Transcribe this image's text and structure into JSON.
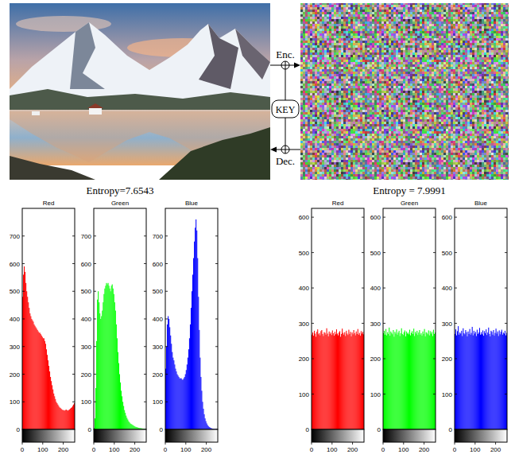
{
  "diagram": {
    "encrypt_label": "Enc.",
    "decrypt_label": "Dec.",
    "key_label": "KEY",
    "plain_entropy": "Entropy=7.6543",
    "cipher_entropy": "Entropy = 7.9991"
  },
  "chart_data": [
    {
      "type": "histogram",
      "title": "Red",
      "color": "#ff0000",
      "bins": [
        0,
        4,
        8,
        12,
        16,
        20,
        24,
        28,
        32,
        36,
        40,
        44,
        48,
        52,
        56,
        60,
        64,
        68,
        72,
        76,
        80,
        84,
        88,
        92,
        96,
        100,
        104,
        108,
        112,
        116,
        120,
        124,
        128,
        132,
        136,
        140,
        144,
        148,
        152,
        156,
        160,
        164,
        168,
        172,
        176,
        180,
        184,
        188,
        192,
        196,
        200,
        204,
        208,
        212,
        216,
        220,
        224,
        228,
        232,
        236,
        240,
        244,
        248,
        252,
        256
      ],
      "values": [
        480,
        560,
        590,
        570,
        530,
        500,
        480,
        460,
        440,
        420,
        410,
        400,
        395,
        390,
        380,
        375,
        370,
        365,
        360,
        355,
        350,
        350,
        345,
        340,
        335,
        330,
        330,
        320,
        310,
        290,
        270,
        250,
        230,
        210,
        190,
        175,
        160,
        145,
        130,
        120,
        110,
        100,
        95,
        90,
        85,
        80,
        78,
        75,
        72,
        70,
        70,
        68,
        70,
        72,
        70,
        68,
        70,
        72,
        75,
        78,
        80,
        85,
        90,
        95
      ],
      "xlim": [
        0,
        256
      ],
      "xticks": [
        0,
        100,
        200
      ],
      "ylim": [
        0,
        800
      ],
      "yticks": [
        0,
        100,
        200,
        300,
        400,
        500,
        600,
        700
      ]
    },
    {
      "type": "histogram",
      "title": "Green",
      "color": "#00ff00",
      "bins": [
        0,
        4,
        8,
        12,
        16,
        20,
        24,
        28,
        32,
        36,
        40,
        44,
        48,
        52,
        56,
        60,
        64,
        68,
        72,
        76,
        80,
        84,
        88,
        92,
        96,
        100,
        104,
        108,
        112,
        116,
        120,
        124,
        128,
        132,
        136,
        140,
        144,
        148,
        152,
        156,
        160,
        164,
        168,
        172,
        176,
        180,
        184,
        188,
        192,
        196,
        200,
        204,
        208,
        212,
        216,
        220,
        224,
        228,
        232,
        236,
        240,
        244,
        248,
        252,
        256
      ],
      "values": [
        5,
        40,
        150,
        320,
        470,
        500,
        460,
        420,
        400,
        410,
        430,
        460,
        490,
        510,
        520,
        530,
        525,
        530,
        520,
        510,
        500,
        520,
        525,
        510,
        490,
        460,
        430,
        380,
        330,
        280,
        240,
        200,
        170,
        140,
        120,
        100,
        85,
        70,
        60,
        50,
        42,
        36,
        30,
        26,
        22,
        20,
        18,
        16,
        14,
        12,
        10,
        9,
        8,
        7,
        6,
        5,
        5,
        4,
        4,
        3,
        3,
        2,
        2,
        1
      ],
      "xlim": [
        0,
        256
      ],
      "xticks": [
        0,
        100,
        200
      ],
      "ylim": [
        0,
        800
      ],
      "yticks": [
        0,
        100,
        200,
        300,
        400,
        500,
        600,
        700
      ]
    },
    {
      "type": "histogram",
      "title": "Blue",
      "color": "#0000ff",
      "bins": [
        0,
        4,
        8,
        12,
        16,
        20,
        24,
        28,
        32,
        36,
        40,
        44,
        48,
        52,
        56,
        60,
        64,
        68,
        72,
        76,
        80,
        84,
        88,
        92,
        96,
        100,
        104,
        108,
        112,
        116,
        120,
        124,
        128,
        132,
        136,
        140,
        144,
        148,
        152,
        156,
        160,
        164,
        168,
        172,
        176,
        180,
        184,
        188,
        192,
        196,
        200,
        204,
        208,
        212,
        216,
        220,
        224,
        228,
        232,
        236,
        240,
        244,
        248,
        252,
        256
      ],
      "values": [
        220,
        300,
        380,
        410,
        400,
        370,
        340,
        310,
        280,
        260,
        250,
        235,
        220,
        210,
        200,
        195,
        190,
        185,
        185,
        185,
        180,
        180,
        185,
        190,
        200,
        215,
        235,
        260,
        290,
        330,
        380,
        440,
        500,
        560,
        620,
        680,
        730,
        760,
        720,
        620,
        480,
        360,
        260,
        190,
        140,
        100,
        75,
        55,
        40,
        30,
        22,
        16,
        12,
        9,
        7,
        5,
        4,
        3,
        2,
        2,
        1,
        1,
        1,
        1
      ],
      "xlim": [
        0,
        256
      ],
      "xticks": [
        0,
        100,
        200
      ],
      "ylim": [
        0,
        800
      ],
      "yticks": [
        0,
        100,
        200,
        300,
        400,
        500,
        600,
        700
      ]
    },
    {
      "type": "histogram",
      "title": "Red",
      "color": "#ff0000",
      "bins": [
        0,
        4,
        8,
        12,
        16,
        20,
        24,
        28,
        32,
        36,
        40,
        44,
        48,
        52,
        56,
        60,
        64,
        68,
        72,
        76,
        80,
        84,
        88,
        92,
        96,
        100,
        104,
        108,
        112,
        116,
        120,
        124,
        128,
        132,
        136,
        140,
        144,
        148,
        152,
        156,
        160,
        164,
        168,
        172,
        176,
        180,
        184,
        188,
        192,
        196,
        200,
        204,
        208,
        212,
        216,
        220,
        224,
        228,
        232,
        236,
        240,
        244,
        248,
        252,
        256
      ],
      "values": [
        268,
        274,
        265,
        279,
        271,
        262,
        276,
        283,
        269,
        272,
        266,
        278,
        281,
        270,
        264,
        275,
        273,
        268,
        286,
        271,
        263,
        277,
        270,
        274,
        267,
        280,
        272,
        265,
        276,
        269,
        283,
        271,
        266,
        274,
        278,
        262,
        270,
        285,
        273,
        268,
        275,
        264,
        279,
        271,
        267,
        282,
        270,
        276,
        263,
        274,
        269,
        281,
        272,
        266,
        277,
        270,
        284,
        268,
        273,
        265,
        278,
        271,
        276,
        269
      ],
      "xlim": [
        0,
        256
      ],
      "xticks": [
        0,
        100,
        200
      ],
      "ylim": [
        0,
        625
      ],
      "yticks": [
        0,
        100,
        200,
        300,
        400,
        500,
        600
      ]
    },
    {
      "type": "histogram",
      "title": "Green",
      "color": "#00ff00",
      "bins": [
        0,
        4,
        8,
        12,
        16,
        20,
        24,
        28,
        32,
        36,
        40,
        44,
        48,
        52,
        56,
        60,
        64,
        68,
        72,
        76,
        80,
        84,
        88,
        92,
        96,
        100,
        104,
        108,
        112,
        116,
        120,
        124,
        128,
        132,
        136,
        140,
        144,
        148,
        152,
        156,
        160,
        164,
        168,
        172,
        176,
        180,
        184,
        188,
        192,
        196,
        200,
        204,
        208,
        212,
        216,
        220,
        224,
        228,
        232,
        236,
        240,
        244,
        248,
        252,
        256
      ],
      "values": [
        272,
        279,
        268,
        284,
        266,
        275,
        270,
        288,
        265,
        277,
        273,
        269,
        281,
        262,
        276,
        271,
        283,
        268,
        274,
        279,
        264,
        272,
        286,
        270,
        267,
        275,
        280,
        263,
        277,
        271,
        274,
        269,
        282,
        266,
        273,
        278,
        270,
        285,
        264,
        276,
        271,
        279,
        267,
        274,
        281,
        268,
        272,
        265,
        277,
        270,
        284,
        263,
        275,
        273,
        269,
        280,
        266,
        278,
        271,
        276,
        264,
        282,
        270,
        274
      ],
      "xlim": [
        0,
        256
      ],
      "xticks": [
        0,
        100,
        200
      ],
      "ylim": [
        0,
        625
      ],
      "yticks": [
        0,
        100,
        200,
        300,
        400,
        500,
        600
      ]
    },
    {
      "type": "histogram",
      "title": "Blue",
      "color": "#0000ff",
      "bins": [
        0,
        4,
        8,
        12,
        16,
        20,
        24,
        28,
        32,
        36,
        40,
        44,
        48,
        52,
        56,
        60,
        64,
        68,
        72,
        76,
        80,
        84,
        88,
        92,
        96,
        100,
        104,
        108,
        112,
        116,
        120,
        124,
        128,
        132,
        136,
        140,
        144,
        148,
        152,
        156,
        160,
        164,
        168,
        172,
        176,
        180,
        184,
        188,
        192,
        196,
        200,
        204,
        208,
        212,
        216,
        220,
        224,
        228,
        232,
        236,
        240,
        244,
        248,
        252,
        256
      ],
      "values": [
        270,
        283,
        266,
        278,
        292,
        268,
        274,
        271,
        279,
        264,
        286,
        272,
        269,
        281,
        275,
        263,
        277,
        270,
        284,
        268,
        273,
        290,
        266,
        279,
        271,
        276,
        264,
        282,
        270,
        274,
        287,
        268,
        275,
        269,
        280,
        265,
        278,
        272,
        283,
        267,
        274,
        288,
        270,
        263,
        279,
        276,
        268,
        281,
        265,
        273,
        285,
        271,
        277,
        264,
        280,
        269,
        276,
        282,
        268,
        274,
        271,
        279,
        266,
        273
      ],
      "xlim": [
        0,
        256
      ],
      "xticks": [
        0,
        100,
        200
      ],
      "ylim": [
        0,
        625
      ],
      "yticks": [
        0,
        100,
        200,
        300,
        400,
        500,
        600
      ]
    }
  ]
}
